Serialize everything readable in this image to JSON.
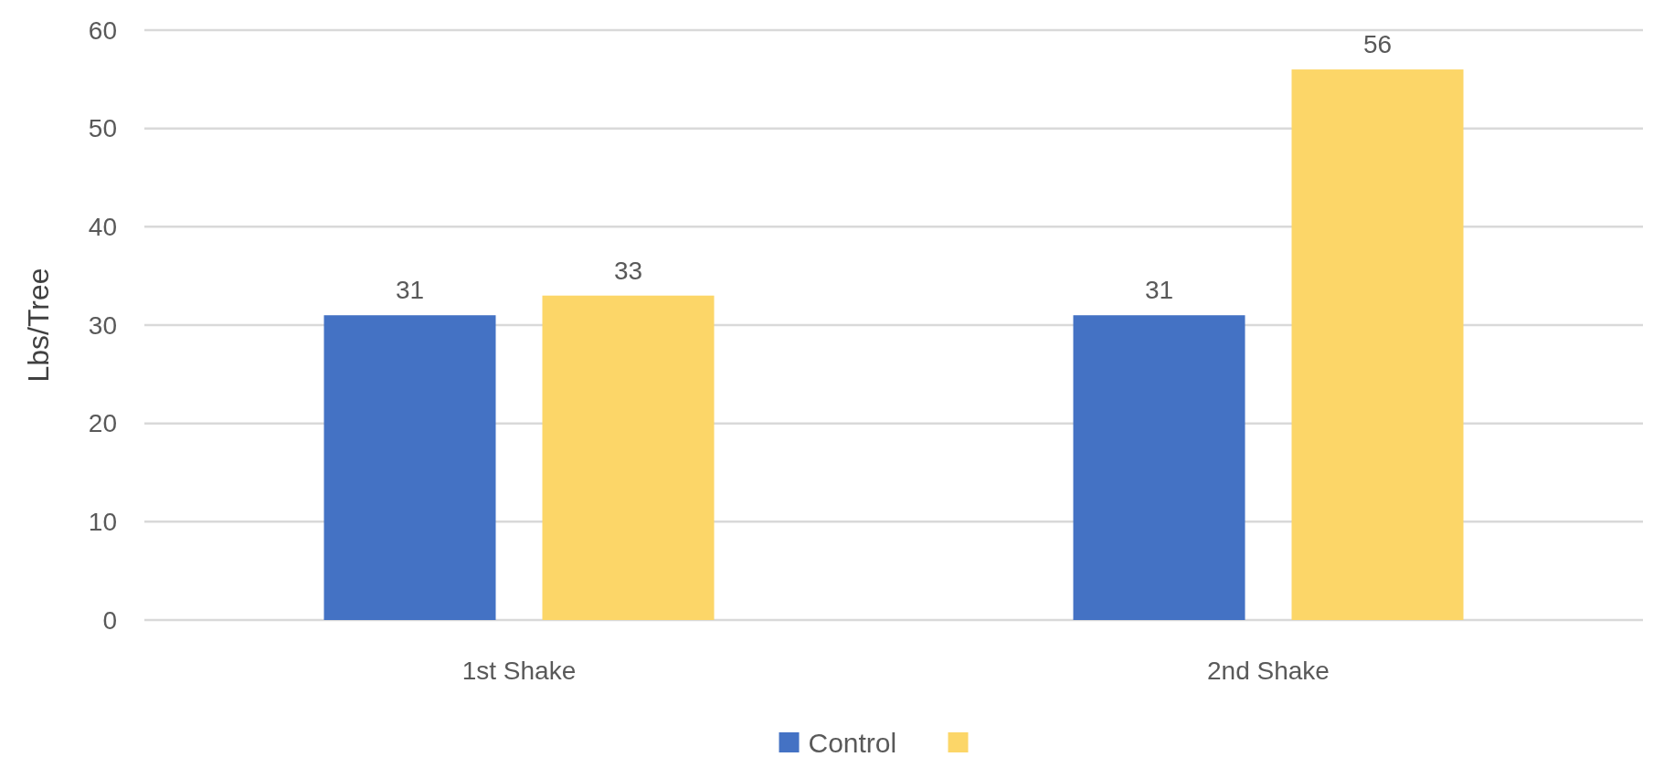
{
  "chart_data": {
    "type": "bar",
    "ylabel": "Lbs/Tree",
    "categories": [
      "1st Shake",
      "2nd Shake"
    ],
    "series": [
      {
        "name": "Control",
        "color": "#4472c4",
        "values": [
          31,
          31
        ]
      },
      {
        "color": "#fcd668",
        "values": [
          33,
          56
        ]
      }
    ],
    "ylim": [
      0,
      60
    ],
    "yticks": [
      0,
      10,
      20,
      30,
      40,
      50,
      60
    ],
    "grid": "y",
    "legend": "bottom",
    "data_labels": true
  }
}
